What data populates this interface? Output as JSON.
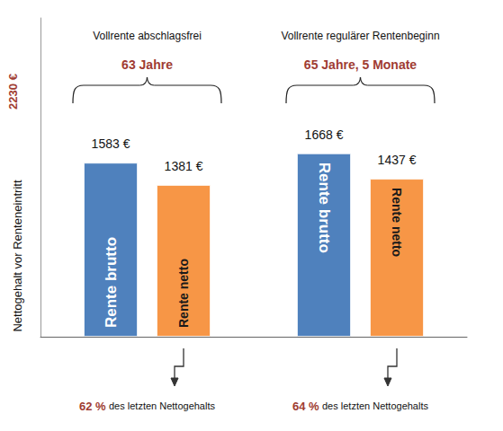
{
  "chart_data": {
    "type": "bar",
    "categories": [
      "Vollrente abschlagsfrei",
      "Vollrente regulärer Rentenbeginn"
    ],
    "category_subtitles": [
      "63 Jahre",
      "65 Jahre, 5 Monate"
    ],
    "y_label": "Nettogehalt vor Renteneintritt",
    "reference": {
      "value": 2230,
      "label": "2230 €"
    },
    "series": [
      {
        "name": "Rente brutto",
        "color": "#4f81bd",
        "values": [
          1583,
          1668
        ],
        "value_labels": [
          "1583 €",
          "1668 €"
        ]
      },
      {
        "name": "Rente netto",
        "color": "#f79646",
        "values": [
          1381,
          1437
        ],
        "value_labels": [
          "1381 €",
          "1437 €"
        ]
      }
    ],
    "shares": [
      {
        "value": 62,
        "label": "62 %"
      },
      {
        "value": 64,
        "label": "64 %"
      }
    ],
    "share_text": "des letzten Nettogehalts",
    "ylim": [
      0,
      2900
    ],
    "data_labels": true,
    "tick_labels": false,
    "grid": false
  }
}
